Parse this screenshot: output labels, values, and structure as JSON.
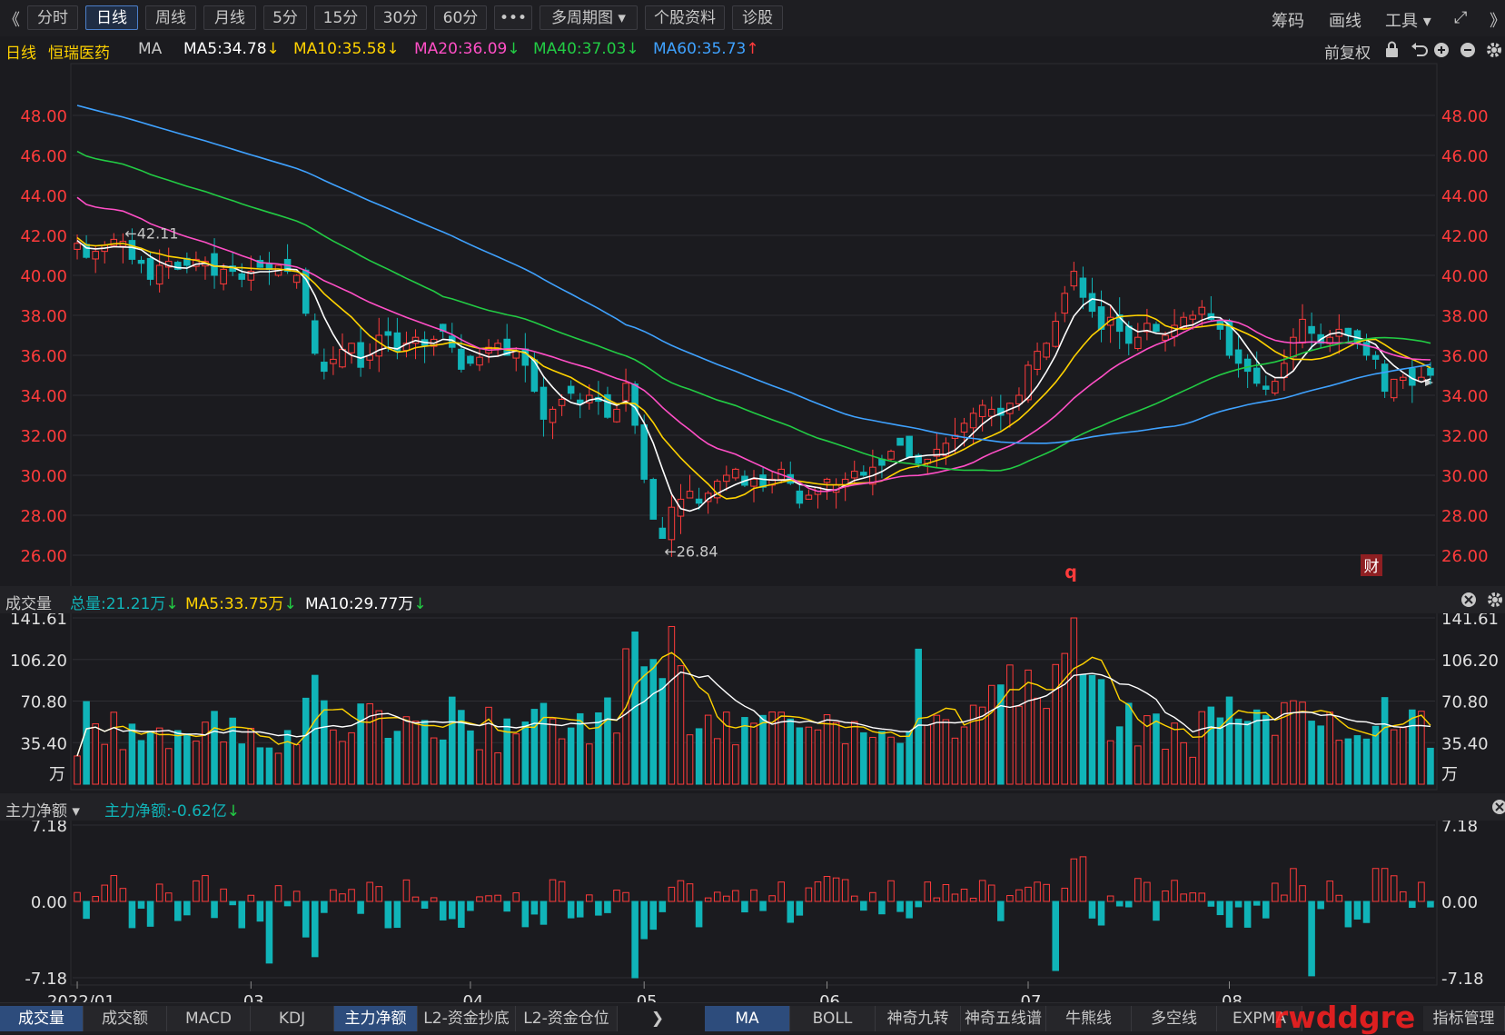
{
  "toolbar": {
    "back_glyph": "《",
    "tabs": [
      "分时",
      "日线",
      "周线",
      "月线",
      "5分",
      "15分",
      "30分",
      "60分",
      "•••",
      "多周期图 ▾",
      "个股资料",
      "诊股"
    ],
    "active_index": 1,
    "right": [
      "筹码",
      "画线",
      "工具 ▾"
    ],
    "expand_glyph": "⤢",
    "more_glyph": "》"
  },
  "info": {
    "period": "日线",
    "name": "恒瑞医药",
    "ma_label": "MA",
    "ma": [
      {
        "text": "MA5:34.78",
        "arrow": "↓",
        "color": "#ffffff",
        "arrow_color": "#ffd200"
      },
      {
        "text": "MA10:35.58",
        "arrow": "↓",
        "color": "#ffd200",
        "arrow_color": "#ffd200"
      },
      {
        "text": "MA20:36.09",
        "arrow": "↓",
        "color": "#ff4fc6",
        "arrow_color": "#22cc44"
      },
      {
        "text": "MA40:37.03",
        "arrow": "↓",
        "color": "#22cc44",
        "arrow_color": "#22cc44"
      },
      {
        "text": "MA60:35.73",
        "arrow": "↑",
        "color": "#3fa2ff",
        "arrow_color": "#ff3b3b"
      }
    ],
    "adjust": "前复权"
  },
  "volume_header": {
    "name": "成交量",
    "total": "总量:21.21万",
    "total_arrow": "↓",
    "ma5": "MA5:33.75万",
    "ma5_arrow": "↓",
    "ma10": "MA10:29.77万",
    "ma10_arrow": "↓"
  },
  "flow_header": {
    "name": "主力净额 ▾",
    "value": "主力净额:-0.62亿",
    "arrow": "↓"
  },
  "bottom_tabs_left": [
    "成交量",
    "成交额",
    "MACD",
    "KDJ",
    "主力净额",
    "L2-资金抄底",
    "L2-资金仓位"
  ],
  "bottom_tabs_left_selected": [
    0,
    4
  ],
  "bottom_arrow": "❯",
  "bottom_tabs_right": [
    "MA",
    "BOLL",
    "神奇九转",
    "神奇五线谱",
    "牛熊线",
    "多空线",
    "EXPMA"
  ],
  "bottom_tabs_right_selected": 0,
  "bottom_manage": "指标管理",
  "watermark": "rwddgre",
  "colors": {
    "up": "#ff3b3b",
    "down": "#10b4b8",
    "ma5": "#ffffff",
    "ma10": "#ffd200",
    "ma20": "#ff4fc6",
    "ma40": "#22cc44",
    "ma60": "#3fa2ff",
    "axis": "#ff3b3b"
  },
  "chart_data": [
    {
      "type": "candlestick",
      "title": "恒瑞医药 日线",
      "ylim": [
        25,
        50
      ],
      "yticks": [
        "48.00",
        "46.00",
        "44.00",
        "42.00",
        "40.00",
        "38.00",
        "36.00",
        "34.00",
        "32.00",
        "30.00",
        "28.00",
        "26.00"
      ],
      "x_tick_labels": [
        "2022/01",
        "03",
        "04",
        "05",
        "06",
        "07",
        "08"
      ],
      "high_annotation": "42.11",
      "low_annotation": "26.84",
      "markers": [
        "q",
        "财"
      ],
      "ohlc_approx": {
        "close": [
          41.6,
          40.9,
          41.2,
          41.5,
          41.8,
          41.7,
          40.8,
          40.6,
          39.8,
          40.5,
          40.7,
          40.3,
          40.5,
          40.8,
          40.7,
          40.0,
          40.3,
          40.2,
          39.8,
          40.2,
          40.4,
          40.3,
          40.5,
          40.2,
          40.0,
          38.1,
          36.1,
          35.2,
          35.8,
          36.3,
          36.6,
          35.4,
          36.0,
          37.0,
          37.0,
          36.2,
          36.6,
          36.9,
          36.5,
          36.8,
          37.2,
          36.4,
          35.3,
          35.6,
          35.9,
          36.4,
          36.6,
          36.0,
          36.2,
          35.5,
          34.2,
          32.8,
          33.3,
          33.8,
          34.1,
          33.6,
          34.0,
          33.7,
          32.9,
          33.3,
          34.6,
          32.5,
          29.8,
          27.8,
          26.84,
          28.4,
          28.8,
          29.2,
          28.6,
          29.1,
          29.7,
          30.0,
          30.3,
          29.5,
          29.8,
          29.4,
          29.8,
          30.3,
          29.6,
          28.6,
          29.0,
          29.4,
          29.8,
          29.5,
          29.8,
          30.2,
          30.0,
          30.4,
          30.5,
          31.2,
          31.5,
          30.9,
          30.6,
          30.8,
          31.3,
          31.6,
          32.0,
          32.6,
          33.1,
          33.5,
          33.3,
          33.0,
          33.6,
          34.0,
          35.5,
          36.2,
          36.6,
          37.7,
          39.1,
          40.2,
          38.9,
          38.2,
          37.3,
          37.9,
          37.2,
          36.6,
          36.9,
          37.6,
          37.2,
          37.0,
          37.5,
          37.9,
          38.0,
          38.4,
          37.8,
          37.3,
          36.0,
          35.6,
          35.2,
          34.6,
          34.3,
          34.7,
          35.6,
          36.9,
          37.8,
          37.1,
          36.6,
          36.9,
          37.3,
          37.0,
          36.6,
          36.0,
          35.8,
          34.2,
          34.8,
          34.9,
          34.5,
          34.9,
          35.0
        ]
      }
    },
    {
      "type": "bar",
      "title": "成交量",
      "unit": "万",
      "ylim": [
        0,
        141.61
      ],
      "yticks": [
        "141.61",
        "106.20",
        "70.80",
        "35.40"
      ]
    },
    {
      "type": "bar",
      "title": "主力净额",
      "ylim": [
        -7.18,
        7.18
      ],
      "yticks": [
        "7.18",
        "0.00",
        "-7.18"
      ]
    }
  ]
}
